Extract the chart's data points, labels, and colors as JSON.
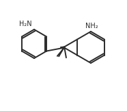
{
  "background_color": "#ffffff",
  "line_color": "#2a2a2a",
  "line_width": 1.4,
  "text_color": "#2a2a2a",
  "nh2_font_size": 7.0
}
